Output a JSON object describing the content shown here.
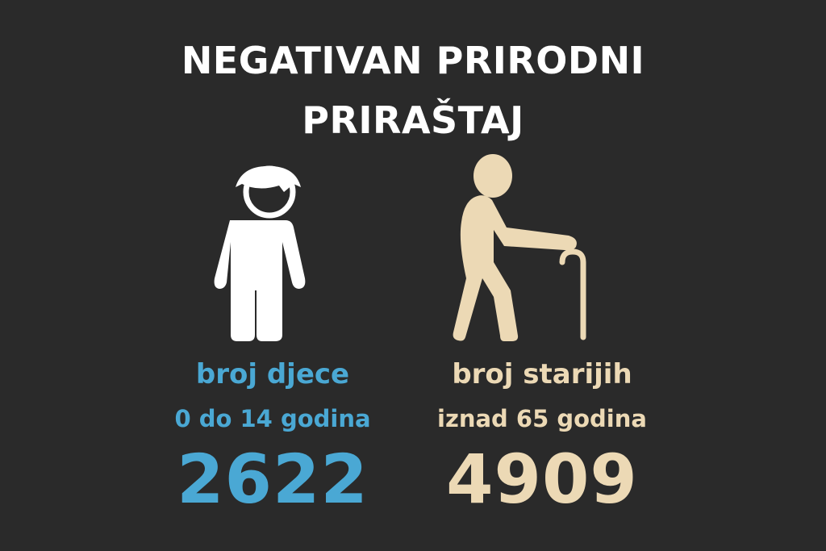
{
  "title": {
    "line1": "NEGATIVAN PRIRODNI",
    "line2": "PRIRAŠTAJ"
  },
  "children": {
    "label": "broj djece",
    "sublabel": "0 do 14 godina",
    "value": "2622",
    "icon": "child-icon",
    "color": "#4aa8d4"
  },
  "elderly": {
    "label": "broj starijih",
    "sublabel": "iznad 65 godina",
    "value": "4909",
    "icon": "elderly-with-cane-icon",
    "color": "#ecd9b5"
  },
  "colors": {
    "background": "#2a2a2a",
    "title": "#ffffff",
    "child_icon": "#ffffff"
  }
}
